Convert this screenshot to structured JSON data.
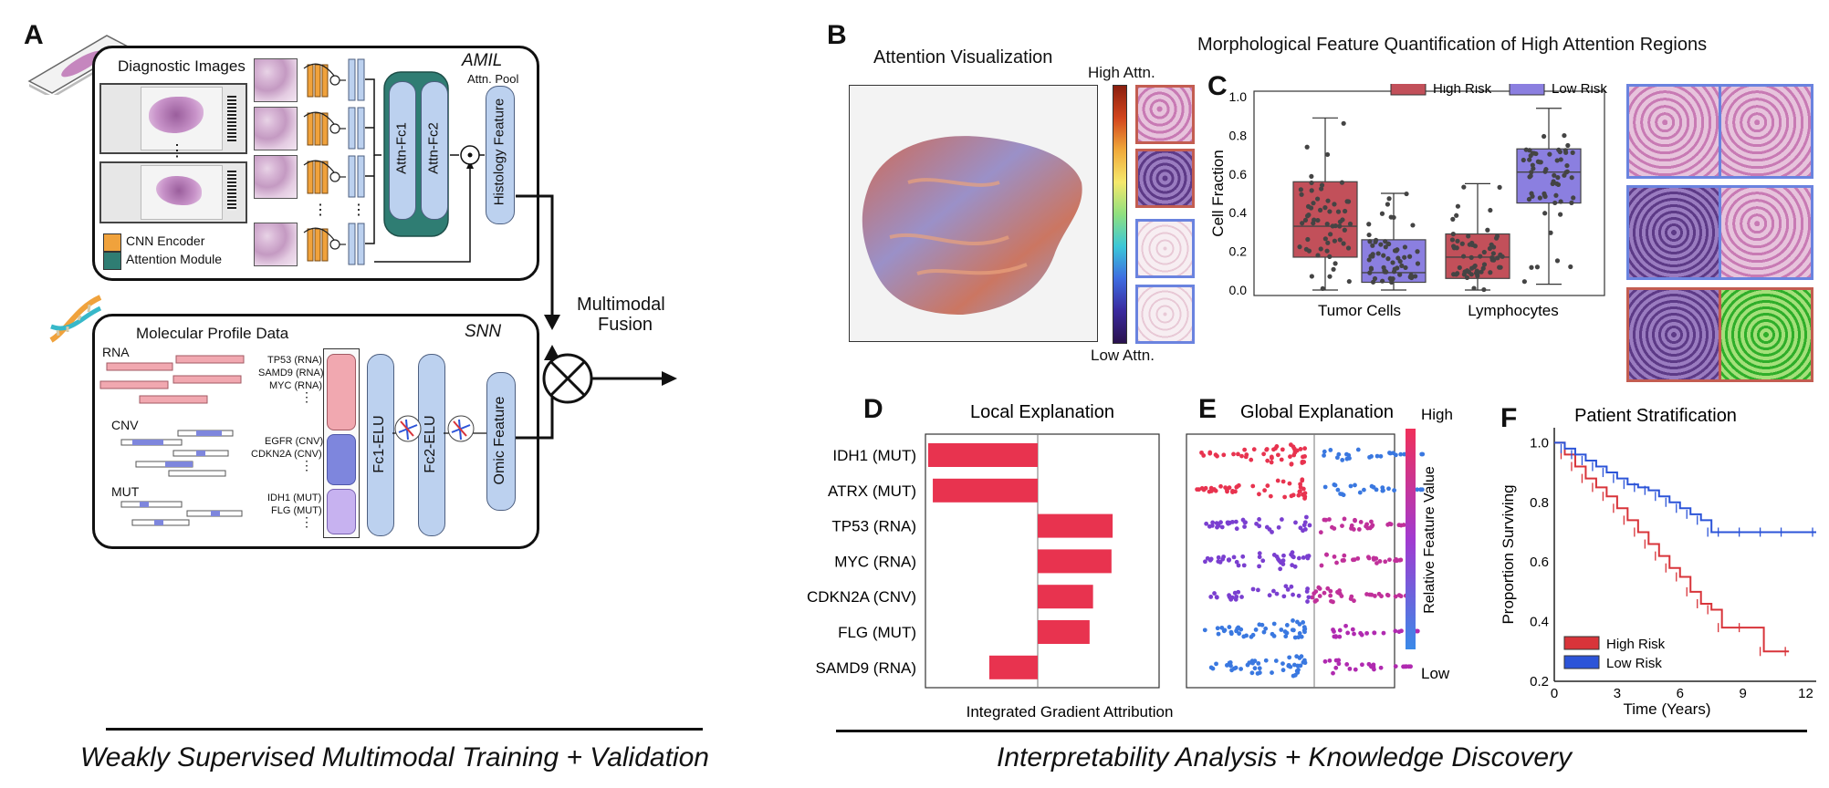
{
  "panels": {
    "a": "A",
    "b": "B",
    "c": "C",
    "d": "D",
    "e": "E",
    "f": "F"
  },
  "panel_a": {
    "model_top": "AMIL",
    "diag_images_title": "Diagnostic Images",
    "attn_pool": "Attn. Pool",
    "attn_fc1": "Attn-Fc1",
    "attn_fc2": "Attn-Fc2",
    "histology_feature": "Histology Feature",
    "legend": [
      {
        "label": "CNN Encoder",
        "color": "#f0a23c"
      },
      {
        "label": "Attention Module",
        "color": "#2f7d73"
      }
    ],
    "dots": "⋮",
    "model_bottom": "SNN",
    "molecular_title": "Molecular Profile Data",
    "rna": "RNA",
    "cnv": "CNV",
    "mut": "MUT",
    "gene_groups": [
      [
        "TP53 (RNA)",
        "SAMD9 (RNA)",
        "MYC (RNA)"
      ],
      [
        "EGFR (CNV)",
        "CDKN2A (CNV)"
      ],
      [
        "IDH1 (MUT)",
        "FLG (MUT)"
      ]
    ],
    "fc1": "Fc1-ELU",
    "fc2": "Fc2-ELU",
    "omic_feature": "Omic Feature",
    "fusion": [
      "Multimodal",
      "Fusion"
    ],
    "footer": "Weakly Supervised Multimodal Training + Validation"
  },
  "panel_b": {
    "title": "Attention Visualization",
    "high": "High Attn.",
    "low": "Low Attn.",
    "header": "Morphological Feature Quantification of High Attention Regions"
  },
  "chart_data": [
    {
      "type": "box",
      "panel": "C",
      "ylabel": "Cell Fraction",
      "ylim": [
        0,
        1.0
      ],
      "yticks": [
        "0.0",
        "0.2",
        "0.4",
        "0.6",
        "0.8",
        "1.0"
      ],
      "categories": [
        "Tumor Cells",
        "Lymphocytes"
      ],
      "legend": [
        {
          "name": "High Risk",
          "color": "#c2505a"
        },
        {
          "name": "Low Risk",
          "color": "#8b7fe0"
        }
      ],
      "boxes": [
        {
          "category": "Tumor Cells",
          "series": "High Risk",
          "q1": 0.17,
          "median": 0.33,
          "q3": 0.56,
          "min": 0.0,
          "max": 0.89
        },
        {
          "category": "Tumor Cells",
          "series": "Low Risk",
          "q1": 0.04,
          "median": 0.09,
          "q3": 0.26,
          "min": 0.0,
          "max": 0.5
        },
        {
          "category": "Lymphocytes",
          "series": "High Risk",
          "q1": 0.06,
          "median": 0.17,
          "q3": 0.29,
          "min": 0.0,
          "max": 0.55
        },
        {
          "category": "Lymphocytes",
          "series": "Low Risk",
          "q1": 0.45,
          "median": 0.61,
          "q3": 0.73,
          "min": 0.03,
          "max": 0.94
        }
      ]
    },
    {
      "type": "bar",
      "panel": "D",
      "title": "Local Explanation",
      "xlabel": "Integrated Gradient Attribution",
      "categories": [
        "IDH1 (MUT)",
        "ATRX (MUT)",
        "TP53 (RNA)",
        "MYC (RNA)",
        "CDKN2A (CNV)",
        "FLG (MUT)",
        "SAMD9 (RNA)"
      ],
      "values": [
        -0.95,
        -0.91,
        0.65,
        0.64,
        0.48,
        0.45,
        -0.42
      ],
      "xlim": [
        -1.0,
        1.0
      ],
      "color": "#e8334f"
    },
    {
      "type": "scatter",
      "panel": "E",
      "title": "Global Explanation",
      "colorbar_label": "Relative Feature Value",
      "colorbar_high": "High",
      "colorbar_low": "Low",
      "rows": [
        "IDH1 (MUT)",
        "ATRX (MUT)",
        "TP53 (RNA)",
        "MYC (RNA)",
        "CDKN2A (CNV)",
        "FLG (MUT)",
        "SAMD9 (RNA)"
      ]
    },
    {
      "type": "line",
      "panel": "F",
      "title": "Patient Stratification",
      "xlabel": "Time (Years)",
      "ylabel": "Proportion Surviving",
      "xlim": [
        0,
        12.5
      ],
      "ylim": [
        0.2,
        1.05
      ],
      "xticks": [
        0,
        3,
        6,
        9,
        12
      ],
      "yticks": [
        0.2,
        0.4,
        0.6,
        0.8,
        1.0
      ],
      "series": [
        {
          "name": "High Risk",
          "color": "#d8343a",
          "x": [
            0,
            0.5,
            1,
            1.5,
            2,
            2.5,
            3,
            3.5,
            4,
            4.5,
            5,
            5.5,
            6,
            6.5,
            7,
            7.5,
            8,
            9,
            10,
            11.2
          ],
          "y": [
            1.0,
            0.96,
            0.92,
            0.88,
            0.85,
            0.82,
            0.78,
            0.74,
            0.7,
            0.66,
            0.62,
            0.58,
            0.55,
            0.5,
            0.46,
            0.44,
            0.38,
            0.38,
            0.3,
            0.3
          ]
        },
        {
          "name": "Low Risk",
          "color": "#2c54d8",
          "x": [
            0,
            0.5,
            1,
            1.5,
            2,
            2.5,
            3,
            3.5,
            4,
            4.5,
            5,
            5.5,
            6,
            6.5,
            7,
            7.5,
            8,
            9,
            10,
            11,
            12.5
          ],
          "y": [
            1.0,
            0.98,
            0.96,
            0.94,
            0.92,
            0.9,
            0.88,
            0.86,
            0.85,
            0.84,
            0.82,
            0.8,
            0.78,
            0.76,
            0.74,
            0.7,
            0.7,
            0.7,
            0.7,
            0.7,
            0.7
          ]
        }
      ]
    }
  ],
  "footer_right": "Interpretability Analysis + Knowledge Discovery"
}
